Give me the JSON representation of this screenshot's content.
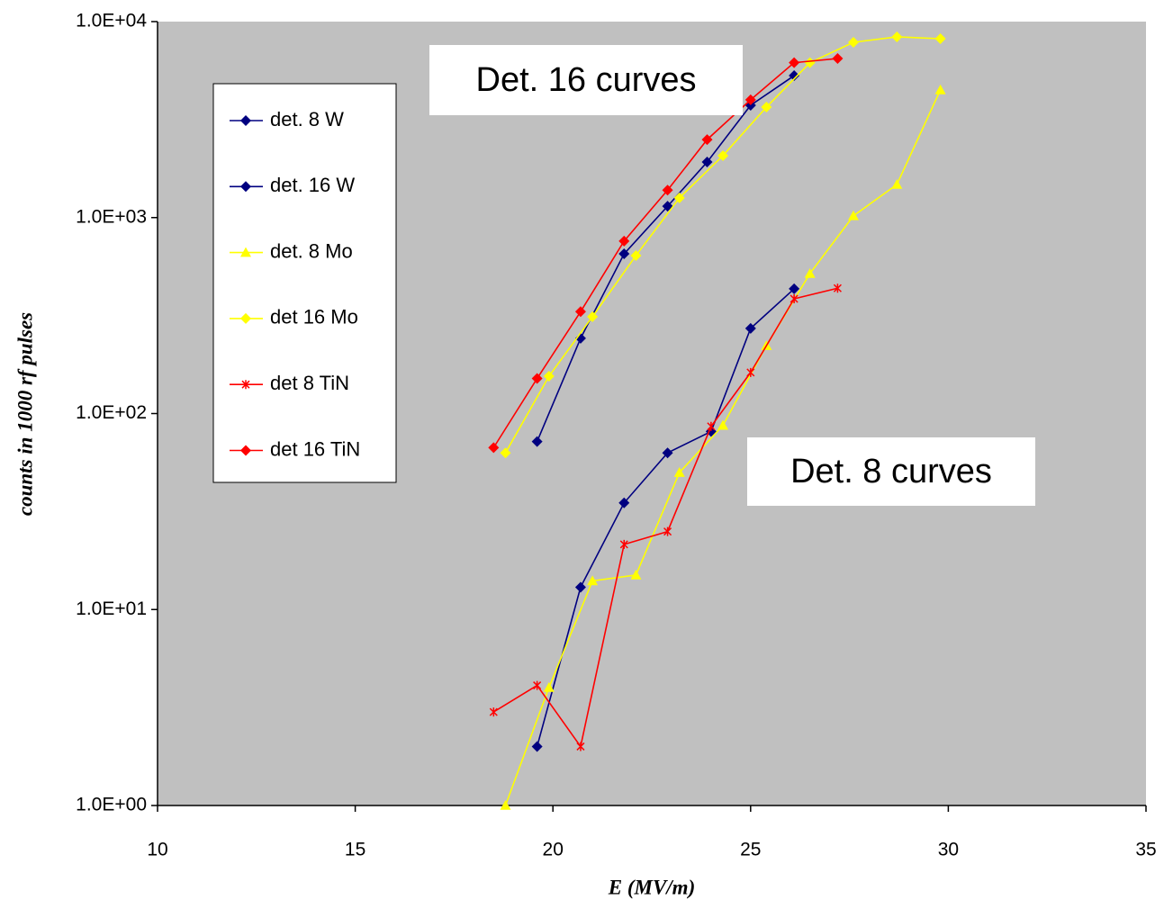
{
  "chart_data": {
    "type": "line",
    "x_label": "E (MV/m)",
    "y_label": "counts in 1000 rf pulses",
    "xlim": [
      10,
      35
    ],
    "xticks": [
      10,
      15,
      20,
      25,
      30,
      35
    ],
    "ylim": [
      1,
      10000
    ],
    "ylog": true,
    "yticks": [
      {
        "value": 1,
        "label": "1.0E+00"
      },
      {
        "value": 10,
        "label": "1.0E+01"
      },
      {
        "value": 100,
        "label": "1.0E+02"
      },
      {
        "value": 1000,
        "label": "1.0E+03"
      },
      {
        "value": 10000,
        "label": "1.0E+04"
      }
    ],
    "grid": false,
    "legend": "upper left",
    "series": [
      {
        "name": "det. 8 W",
        "color": "#000080",
        "marker": "diamond",
        "x": [
          19.6,
          20.7,
          21.8,
          22.9,
          24.0,
          25.0,
          26.1
        ],
        "values": [
          2,
          13,
          35,
          63,
          81,
          272,
          433
        ]
      },
      {
        "name": "det. 16 W",
        "color": "#000080",
        "marker": "diamond",
        "x": [
          19.6,
          20.7,
          21.8,
          22.9,
          23.9,
          25.0,
          26.1
        ],
        "values": [
          72,
          242,
          653,
          1143,
          1920,
          3740,
          5300
        ]
      },
      {
        "name": "det. 8 Mo",
        "color": "#ffff00",
        "marker": "triangle",
        "x": [
          18.8,
          19.9,
          21.0,
          22.1,
          23.2,
          24.3,
          25.4,
          26.5,
          27.6,
          28.7,
          29.8
        ],
        "values": [
          1,
          4,
          14,
          15,
          50,
          87,
          222,
          518,
          1020,
          1475,
          4480
        ]
      },
      {
        "name": "det 16 Mo",
        "color": "#ffff00",
        "marker": "diamond",
        "x": [
          18.8,
          19.9,
          21.0,
          22.1,
          23.2,
          24.3,
          25.4,
          26.5,
          27.6,
          28.7,
          29.8
        ],
        "values": [
          63,
          155,
          312,
          640,
          1260,
          2070,
          3660,
          6170,
          7840,
          8360,
          8180
        ]
      },
      {
        "name": "det 8 TiN",
        "color": "#ff0000",
        "marker": "star",
        "x": [
          18.5,
          19.6,
          20.7,
          21.8,
          22.9,
          24.0,
          25.0,
          26.1,
          27.2
        ],
        "values": [
          3,
          4.1,
          2,
          21.5,
          25,
          86,
          162,
          385,
          436
        ]
      },
      {
        "name": "det 16 TiN",
        "color": "#ff0000",
        "marker": "diamond",
        "x": [
          18.5,
          19.6,
          20.7,
          21.8,
          22.9,
          23.9,
          25.0,
          26.1,
          27.2
        ],
        "values": [
          67,
          151,
          331,
          759,
          1380,
          2500,
          3990,
          6170,
          6480
        ]
      }
    ],
    "annotations": [
      {
        "text": "Det. 16 curves"
      },
      {
        "text": "Det. 8 curves"
      }
    ]
  }
}
